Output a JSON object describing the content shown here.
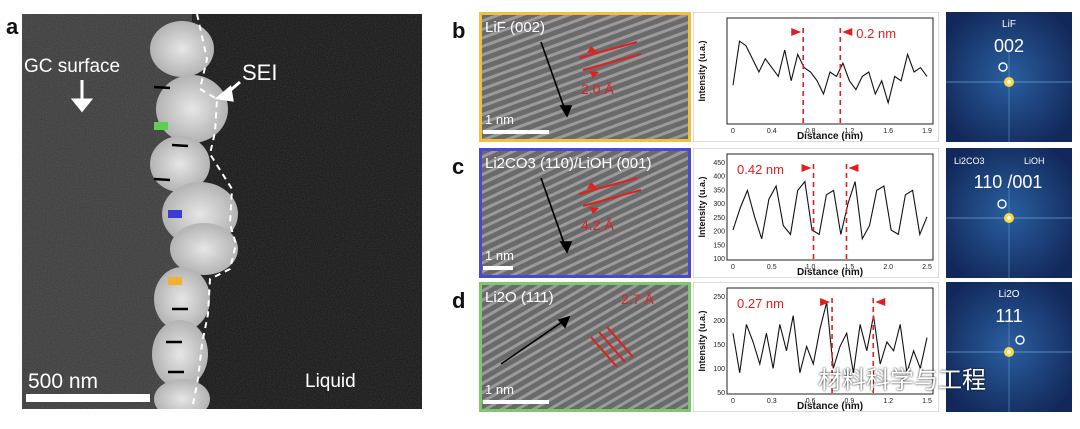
{
  "panel_a": {
    "letter": "a",
    "gc_label": "GC surface",
    "sei_label": "SEI",
    "liquid_label": "Liquid",
    "scale_label": "500 nm"
  },
  "rows": [
    {
      "letter": "b",
      "tem": {
        "label": "LiF (002)",
        "spacing_label": "2.0 Å",
        "scale_label": "1 nm",
        "border_color": "#f0c040"
      },
      "profile": {
        "annotation": "0.2 nm",
        "x_label": "Distance (nm)",
        "y_label": "Intensity (u.a.)",
        "x_ticks": [
          "0",
          "0.4",
          "0.8",
          "1.2",
          "1.6",
          "1.9"
        ],
        "y_ticks": []
      },
      "fft": {
        "labels": [
          "LiF",
          "002"
        ]
      }
    },
    {
      "letter": "c",
      "tem": {
        "label": "Li2CO3 (110)/LiOH (001)",
        "spacing_label": "4.2 Å",
        "scale_label": "1 nm",
        "border_color": "#4a4ad0"
      },
      "profile": {
        "annotation": "0.42 nm",
        "x_label": "Distance (nm)",
        "y_label": "Intensity (u.a.)",
        "x_ticks": [
          "0",
          "0.5",
          "1.0",
          "1.5",
          "2.0",
          "2.5"
        ],
        "y_ticks": [
          "450",
          "400",
          "350",
          "300",
          "250",
          "200",
          "150",
          "100"
        ]
      },
      "fft": {
        "labels": [
          "Li2CO3",
          "LiOH",
          "110 /001"
        ]
      }
    },
    {
      "letter": "d",
      "tem": {
        "label": "Li2O (111)",
        "spacing_label": "2.7 Å",
        "scale_label": "1 nm",
        "border_color": "#7cc86a"
      },
      "profile": {
        "annotation": "0.27 nm",
        "x_label": "Distance (nm)",
        "y_label": "Intensity (u.a.)",
        "x_ticks": [
          "0",
          "0.3",
          "0.6",
          "0.9",
          "1.2",
          "1.5"
        ],
        "y_ticks": [
          "250",
          "200",
          "150",
          "100",
          "50"
        ]
      },
      "fft": {
        "labels": [
          "Li2O",
          "111"
        ]
      }
    }
  ],
  "watermark": "材料科学与工程",
  "colors": {
    "annotation_red": "#e02020",
    "fft_bg": "#12285a"
  }
}
